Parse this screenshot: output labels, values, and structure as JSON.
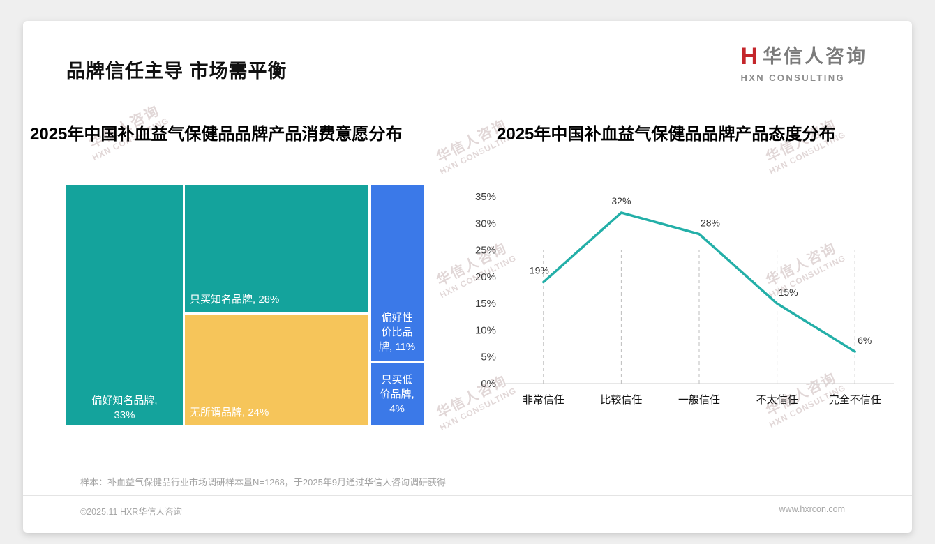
{
  "page": {
    "title": "品牌信任主导 市场需平衡",
    "logo": {
      "mark": "H",
      "name": "华信人咨询",
      "sub": "HXN CONSULTING"
    },
    "watermark": {
      "line1": "华信人咨询",
      "line2": "HXN CONSULTING"
    },
    "footnote": "样本：补血益气保健品行业市场调研样本量N=1268，于2025年9月通过华信人咨询调研获得",
    "footer": {
      "copyright": "©2025.11 HXR华信人咨询",
      "website": "www.hxrcon.com"
    }
  },
  "chart_data": [
    {
      "type": "treemap",
      "title": "2025年中国补血益气保健品品牌产品消费意愿分布",
      "unit": "%",
      "items": [
        {
          "label": "偏好知名品牌",
          "value": 33,
          "color": "#14A39C"
        },
        {
          "label": "只买知名品牌",
          "value": 28,
          "color": "#14A39C"
        },
        {
          "label": "无所谓品牌",
          "value": 24,
          "color": "#F6C55A"
        },
        {
          "label": "偏好性价比品牌",
          "value": 11,
          "color": "#3B79E8"
        },
        {
          "label": "只买低价品牌",
          "value": 4,
          "color": "#3B79E8"
        }
      ]
    },
    {
      "type": "line",
      "title": "2025年中国补血益气保健品品牌产品态度分布",
      "categories": [
        "非常信任",
        "比较信任",
        "一般信任",
        "不太信任",
        "完全不信任"
      ],
      "values": [
        19,
        32,
        28,
        15,
        6
      ],
      "ylim": [
        0,
        35
      ],
      "ytick_step": 5,
      "dropline_top": 25,
      "line_color": "#23AFA8",
      "grid": "vertical-dashed",
      "legend": false,
      "xlabel": "",
      "ylabel": ""
    }
  ]
}
